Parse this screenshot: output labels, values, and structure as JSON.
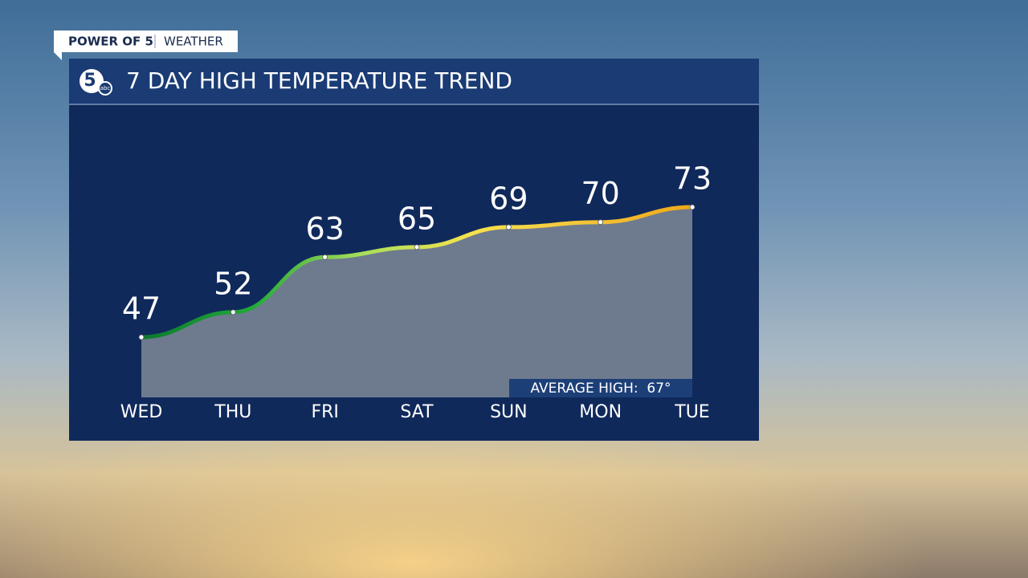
{
  "header": {
    "brand": "POWER OF 5",
    "section": "WEATHER"
  },
  "logo": {
    "number": "5",
    "network": "abc"
  },
  "chart_data": {
    "type": "area-line",
    "title": "7 DAY HIGH TEMPERATURE TREND",
    "categories": [
      "WED",
      "THU",
      "FRI",
      "SAT",
      "SUN",
      "MON",
      "TUE"
    ],
    "values": [
      47,
      52,
      63,
      65,
      69,
      70,
      73
    ],
    "line_gradient": [
      "#0b7a2c",
      "#21a83a",
      "#a8de5a",
      "#f6e24c",
      "#f3c53a",
      "#f0a818"
    ],
    "area_color": "#6e7b8e",
    "annotation": "AVERAGE HIGH:  67°"
  }
}
